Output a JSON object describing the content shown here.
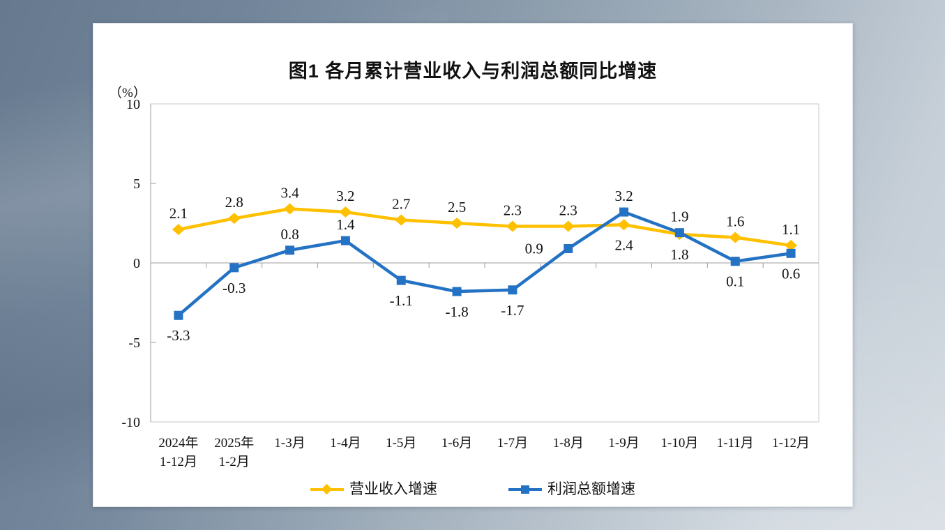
{
  "chart_data": {
    "type": "line",
    "title": "图1  各月累计营业收入与利润总额同比增速",
    "unit_label": "（%）",
    "categories": [
      [
        "2024年",
        "1-12月"
      ],
      [
        "2025年",
        "1-2月"
      ],
      [
        "1-3月"
      ],
      [
        "1-4月"
      ],
      [
        "1-5月"
      ],
      [
        "1-6月"
      ],
      [
        "1-7月"
      ],
      [
        "1-8月"
      ],
      [
        "1-9月"
      ],
      [
        "1-10月"
      ],
      [
        "1-11月"
      ],
      [
        "1-12月"
      ]
    ],
    "ylim": [
      -10,
      10
    ],
    "yticks": [
      10,
      5,
      0,
      -5,
      -10
    ],
    "grid": "none",
    "legend_position": "bottom",
    "axis_color": "#9e9e9e",
    "border_color": "#c8c8c8",
    "text_color": "#111111",
    "series": [
      {
        "name": "营业收入增速",
        "color": "#FFC000",
        "marker": "diamond",
        "values": [
          2.1,
          2.8,
          3.4,
          3.2,
          2.7,
          2.5,
          2.3,
          2.3,
          2.4,
          1.8,
          1.6,
          1.1
        ],
        "label_positions": [
          "above",
          "above",
          "above",
          "above",
          "above",
          "above",
          "above",
          "above",
          "below",
          "below",
          "above",
          "above"
        ]
      },
      {
        "name": "利润总额增速",
        "color": "#2472C4",
        "marker": "square",
        "values": [
          -3.3,
          -0.3,
          0.8,
          1.4,
          -1.1,
          -1.8,
          -1.7,
          0.9,
          3.2,
          1.9,
          0.1,
          0.6
        ],
        "label_positions": [
          "below",
          "below",
          "above",
          "above",
          "below",
          "below",
          "below",
          "left",
          "above",
          "above",
          "below",
          "below"
        ]
      }
    ]
  }
}
